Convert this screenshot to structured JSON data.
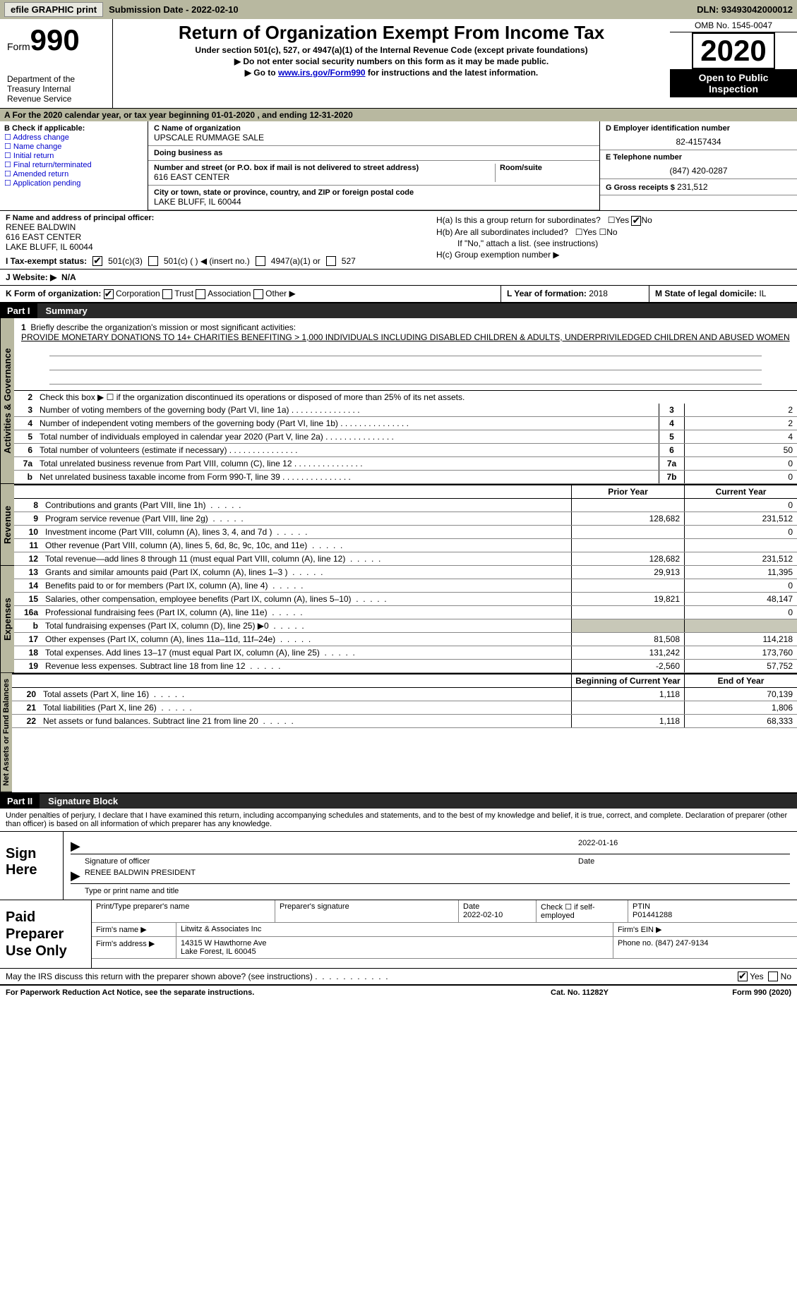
{
  "topbar": {
    "efile_btn": "efile GRAPHIC print",
    "sub_label": "Submission Date - 2022-02-10",
    "dln": "DLN: 93493042000012"
  },
  "header": {
    "form_word": "Form",
    "form_num": "990",
    "dept": "Department of the Treasury\nInternal Revenue Service",
    "title": "Return of Organization Exempt From Income Tax",
    "sub1": "Under section 501(c), 527, or 4947(a)(1) of the Internal Revenue Code (except private foundations)",
    "sub2": "▶ Do not enter social security numbers on this form as it may be made public.",
    "sub3_pre": "▶ Go to ",
    "sub3_link": "www.irs.gov/Form990",
    "sub3_post": " for instructions and the latest information.",
    "omb": "OMB No. 1545-0047",
    "year": "2020",
    "otp": "Open to Public Inspection"
  },
  "line_a": "A For the 2020 calendar year, or tax year beginning 01-01-2020    , and ending 12-31-2020",
  "box_b": {
    "hdr": "B Check if applicable:",
    "opts": [
      "Address change",
      "Name change",
      "Initial return",
      "Final return/terminated",
      "Amended return",
      "Application pending"
    ]
  },
  "box_c": {
    "name_lbl": "C Name of organization",
    "name": "UPSCALE RUMMAGE SALE",
    "dba_lbl": "Doing business as",
    "addr_lbl": "Number and street (or P.O. box if mail is not delivered to street address)",
    "room_lbl": "Room/suite",
    "addr": "616 EAST CENTER",
    "city_lbl": "City or town, state or province, country, and ZIP or foreign postal code",
    "city": "LAKE BLUFF, IL  60044"
  },
  "box_d": {
    "ein_lbl": "D Employer identification number",
    "ein": "82-4157434",
    "tel_lbl": "E Telephone number",
    "tel": "(847) 420-0287",
    "gross_lbl": "G Gross receipts $",
    "gross": "231,512"
  },
  "box_f": {
    "lbl": "F Name and address of principal officer:",
    "name": "RENEE BALDWIN",
    "addr1": "616 EAST CENTER",
    "addr2": "LAKE BLUFF, IL  60044"
  },
  "box_h": {
    "a_lbl": "H(a)  Is this a group return for subordinates?",
    "b_lbl": "H(b)  Are all subordinates included?",
    "b_note": "If \"No,\" attach a list. (see instructions)",
    "c_lbl": "H(c)  Group exemption number ▶"
  },
  "tax_status": {
    "lbl": "I    Tax-exempt status:",
    "o1": "501(c)(3)",
    "o2": "501(c) (  ) ◀ (insert no.)",
    "o3": "4947(a)(1) or",
    "o4": "527"
  },
  "website": {
    "lbl": "J   Website: ▶",
    "val": "N/A"
  },
  "line_k": {
    "lbl": "K Form of organization:",
    "o1": "Corporation",
    "o2": "Trust",
    "o3": "Association",
    "o4": "Other ▶",
    "l_lbl": "L Year of formation:",
    "l_val": "2018",
    "m_lbl": "M State of legal domicile:",
    "m_val": "IL"
  },
  "part1": {
    "pn": "Part I",
    "pt": "Summary"
  },
  "mission": {
    "num": "1",
    "lbl": "Briefly describe the organization's mission or most significant activities:",
    "text": "PROVIDE MONETARY DONATIONS TO 14+ CHARITIES BENEFITING > 1,000 INDIVIDUALS INCLUDING DISABLED CHILDREN & ADULTS, UNDERPRIVILEDGED CHILDREN AND ABUSED WOMEN"
  },
  "line2": {
    "num": "2",
    "txt": "Check this box ▶ ☐  if the organization discontinued its operations or disposed of more than 25% of its net assets."
  },
  "gov_rows": [
    {
      "n": "3",
      "t": "Number of voting members of the governing body (Part VI, line 1a)",
      "bn": "3",
      "v": "2"
    },
    {
      "n": "4",
      "t": "Number of independent voting members of the governing body (Part VI, line 1b)",
      "bn": "4",
      "v": "2"
    },
    {
      "n": "5",
      "t": "Total number of individuals employed in calendar year 2020 (Part V, line 2a)",
      "bn": "5",
      "v": "4"
    },
    {
      "n": "6",
      "t": "Total number of volunteers (estimate if necessary)",
      "bn": "6",
      "v": "50"
    },
    {
      "n": "7a",
      "t": "Total unrelated business revenue from Part VIII, column (C), line 12",
      "bn": "7a",
      "v": "0"
    },
    {
      "n": "b",
      "t": "Net unrelated business taxable income from Form 990-T, line 39",
      "bn": "7b",
      "v": "0"
    }
  ],
  "fin_hdr": {
    "c1": "Prior Year",
    "c2": "Current Year"
  },
  "rev_rows": [
    {
      "n": "8",
      "t": "Contributions and grants (Part VIII, line 1h)",
      "c1": "",
      "c2": "0"
    },
    {
      "n": "9",
      "t": "Program service revenue (Part VIII, line 2g)",
      "c1": "128,682",
      "c2": "231,512"
    },
    {
      "n": "10",
      "t": "Investment income (Part VIII, column (A), lines 3, 4, and 7d )",
      "c1": "",
      "c2": "0"
    },
    {
      "n": "11",
      "t": "Other revenue (Part VIII, column (A), lines 5, 6d, 8c, 9c, 10c, and 11e)",
      "c1": "",
      "c2": ""
    },
    {
      "n": "12",
      "t": "Total revenue—add lines 8 through 11 (must equal Part VIII, column (A), line 12)",
      "c1": "128,682",
      "c2": "231,512"
    }
  ],
  "exp_rows": [
    {
      "n": "13",
      "t": "Grants and similar amounts paid (Part IX, column (A), lines 1–3 )",
      "c1": "29,913",
      "c2": "11,395"
    },
    {
      "n": "14",
      "t": "Benefits paid to or for members (Part IX, column (A), line 4)",
      "c1": "",
      "c2": "0"
    },
    {
      "n": "15",
      "t": "Salaries, other compensation, employee benefits (Part IX, column (A), lines 5–10)",
      "c1": "19,821",
      "c2": "48,147"
    },
    {
      "n": "16a",
      "t": "Professional fundraising fees (Part IX, column (A), line 11e)",
      "c1": "",
      "c2": "0"
    },
    {
      "n": "b",
      "t": "Total fundraising expenses (Part IX, column (D), line 25) ▶0",
      "c1": "grey",
      "c2": "grey"
    },
    {
      "n": "17",
      "t": "Other expenses (Part IX, column (A), lines 11a–11d, 11f–24e)",
      "c1": "81,508",
      "c2": "114,218"
    },
    {
      "n": "18",
      "t": "Total expenses. Add lines 13–17 (must equal Part IX, column (A), line 25)",
      "c1": "131,242",
      "c2": "173,760"
    },
    {
      "n": "19",
      "t": "Revenue less expenses. Subtract line 18 from line 12",
      "c1": "-2,560",
      "c2": "57,752"
    }
  ],
  "na_hdr": {
    "c1": "Beginning of Current Year",
    "c2": "End of Year"
  },
  "na_rows": [
    {
      "n": "20",
      "t": "Total assets (Part X, line 16)",
      "c1": "1,118",
      "c2": "70,139"
    },
    {
      "n": "21",
      "t": "Total liabilities (Part X, line 26)",
      "c1": "",
      "c2": "1,806"
    },
    {
      "n": "22",
      "t": "Net assets or fund balances. Subtract line 21 from line 20",
      "c1": "1,118",
      "c2": "68,333"
    }
  ],
  "vlabels": {
    "gov": "Activities & Governance",
    "rev": "Revenue",
    "exp": "Expenses",
    "na": "Net Assets or\nFund Balances"
  },
  "part2": {
    "pn": "Part II",
    "pt": "Signature Block"
  },
  "sig_intro": "Under penalties of perjury, I declare that I have examined this return, including accompanying schedules and statements, and to the best of my knowledge and belief, it is true, correct, and complete. Declaration of preparer (other than officer) is based on all information of which preparer has any knowledge.",
  "sign": {
    "lbl": "Sign Here",
    "sig_lbl": "Signature of officer",
    "date_lbl": "Date",
    "date": "2022-01-16",
    "name": "RENEE BALDWIN PRESIDENT",
    "name_lbl": "Type or print name and title"
  },
  "prep": {
    "lbl": "Paid Preparer Use Only",
    "h1": "Print/Type preparer's name",
    "h2": "Preparer's signature",
    "h3": "Date",
    "h3v": "2022-02-10",
    "h4": "Check ☐ if self-employed",
    "h5": "PTIN",
    "h5v": "P01441288",
    "f1l": "Firm's name    ▶",
    "f1v": "Litwitz & Associates Inc",
    "f1r": "Firm's EIN ▶",
    "f2l": "Firm's address ▶",
    "f2v1": "14315 W Hawthorne Ave",
    "f2v2": "Lake Forest, IL  60045",
    "f2r": "Phone no. (847) 247-9134"
  },
  "discuss": {
    "txt": "May the IRS discuss this return with the preparer shown above? (see instructions)",
    "yes": "Yes",
    "no": "No"
  },
  "footer": {
    "l": "For Paperwork Reduction Act Notice, see the separate instructions.",
    "m": "Cat. No. 11282Y",
    "r": "Form 990 (2020)"
  }
}
